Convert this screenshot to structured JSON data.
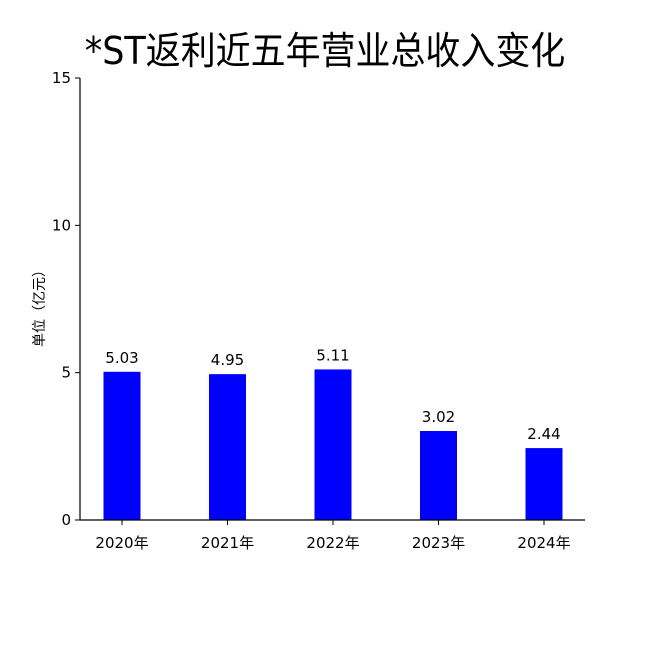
{
  "chart_data": {
    "type": "bar",
    "title": "*ST返利近五年营业总收入变化",
    "xlabel": "",
    "ylabel": "单位（亿元）",
    "categories": [
      "2020年",
      "2021年",
      "2022年",
      "2023年",
      "2024年"
    ],
    "series": [
      {
        "values": [
          5.03,
          4.95,
          5.11,
          3.02,
          2.44
        ],
        "data_labels": [
          "5.03",
          "4.95",
          "5.11",
          "3.02",
          "2.44"
        ]
      }
    ],
    "ylim": [
      0,
      15
    ],
    "yticks": [
      0,
      5,
      10,
      15
    ],
    "ytick_labels": [
      "0",
      "5",
      "10",
      "15"
    ],
    "grid": false,
    "legend": "none",
    "colors": {
      "bar": "#0000ff",
      "axis": "#000000",
      "text": "#000000"
    }
  }
}
